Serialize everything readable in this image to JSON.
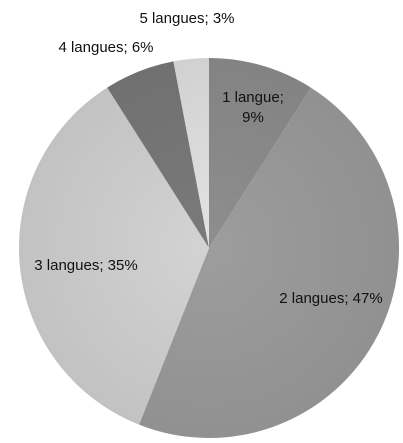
{
  "chart_data": {
    "type": "pie",
    "title": "",
    "categories": [
      "1 langue",
      "2 langues",
      "3 langues",
      "4 langues",
      "5 langues"
    ],
    "values": [
      9,
      47,
      35,
      6,
      3
    ],
    "unit": "%",
    "data_labels": [
      "1 langue;|9%",
      "2 langues; 47%",
      "3 langues; 35%",
      "4 langues; 6%",
      "5 langues; 3%"
    ],
    "colors": [
      "#8e8e8e",
      "#9d9d9d",
      "#d3d3d3",
      "#7a7a7a",
      "#e3e3e3"
    ],
    "start_angle_deg": 0,
    "direction": "clockwise",
    "legend": "none"
  }
}
